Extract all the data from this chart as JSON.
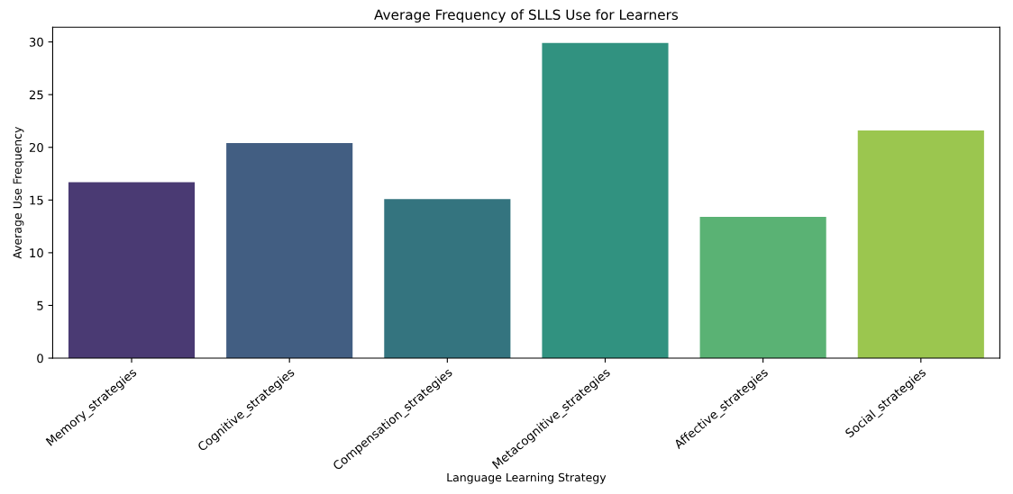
{
  "chart_data": {
    "type": "bar",
    "title": "Average Frequency of SLLS Use for Learners",
    "xlabel": "Language Learning Strategy",
    "ylabel": "Average Use Frequency",
    "categories": [
      "Memory_strategies",
      "Cognitive_strategies",
      "Compensation_strategies",
      "Metacognitive_strategies",
      "Affective_strategies",
      "Social_strategies"
    ],
    "values": [
      16.7,
      20.4,
      15.1,
      29.9,
      13.4,
      21.6
    ],
    "colors": [
      "#4a3a73",
      "#425e82",
      "#34747f",
      "#319280",
      "#5ab274",
      "#9bc64f"
    ],
    "ylim": [
      0,
      31.4
    ],
    "yticks": [
      0,
      5,
      10,
      15,
      20,
      25,
      30
    ],
    "grid": false
  }
}
